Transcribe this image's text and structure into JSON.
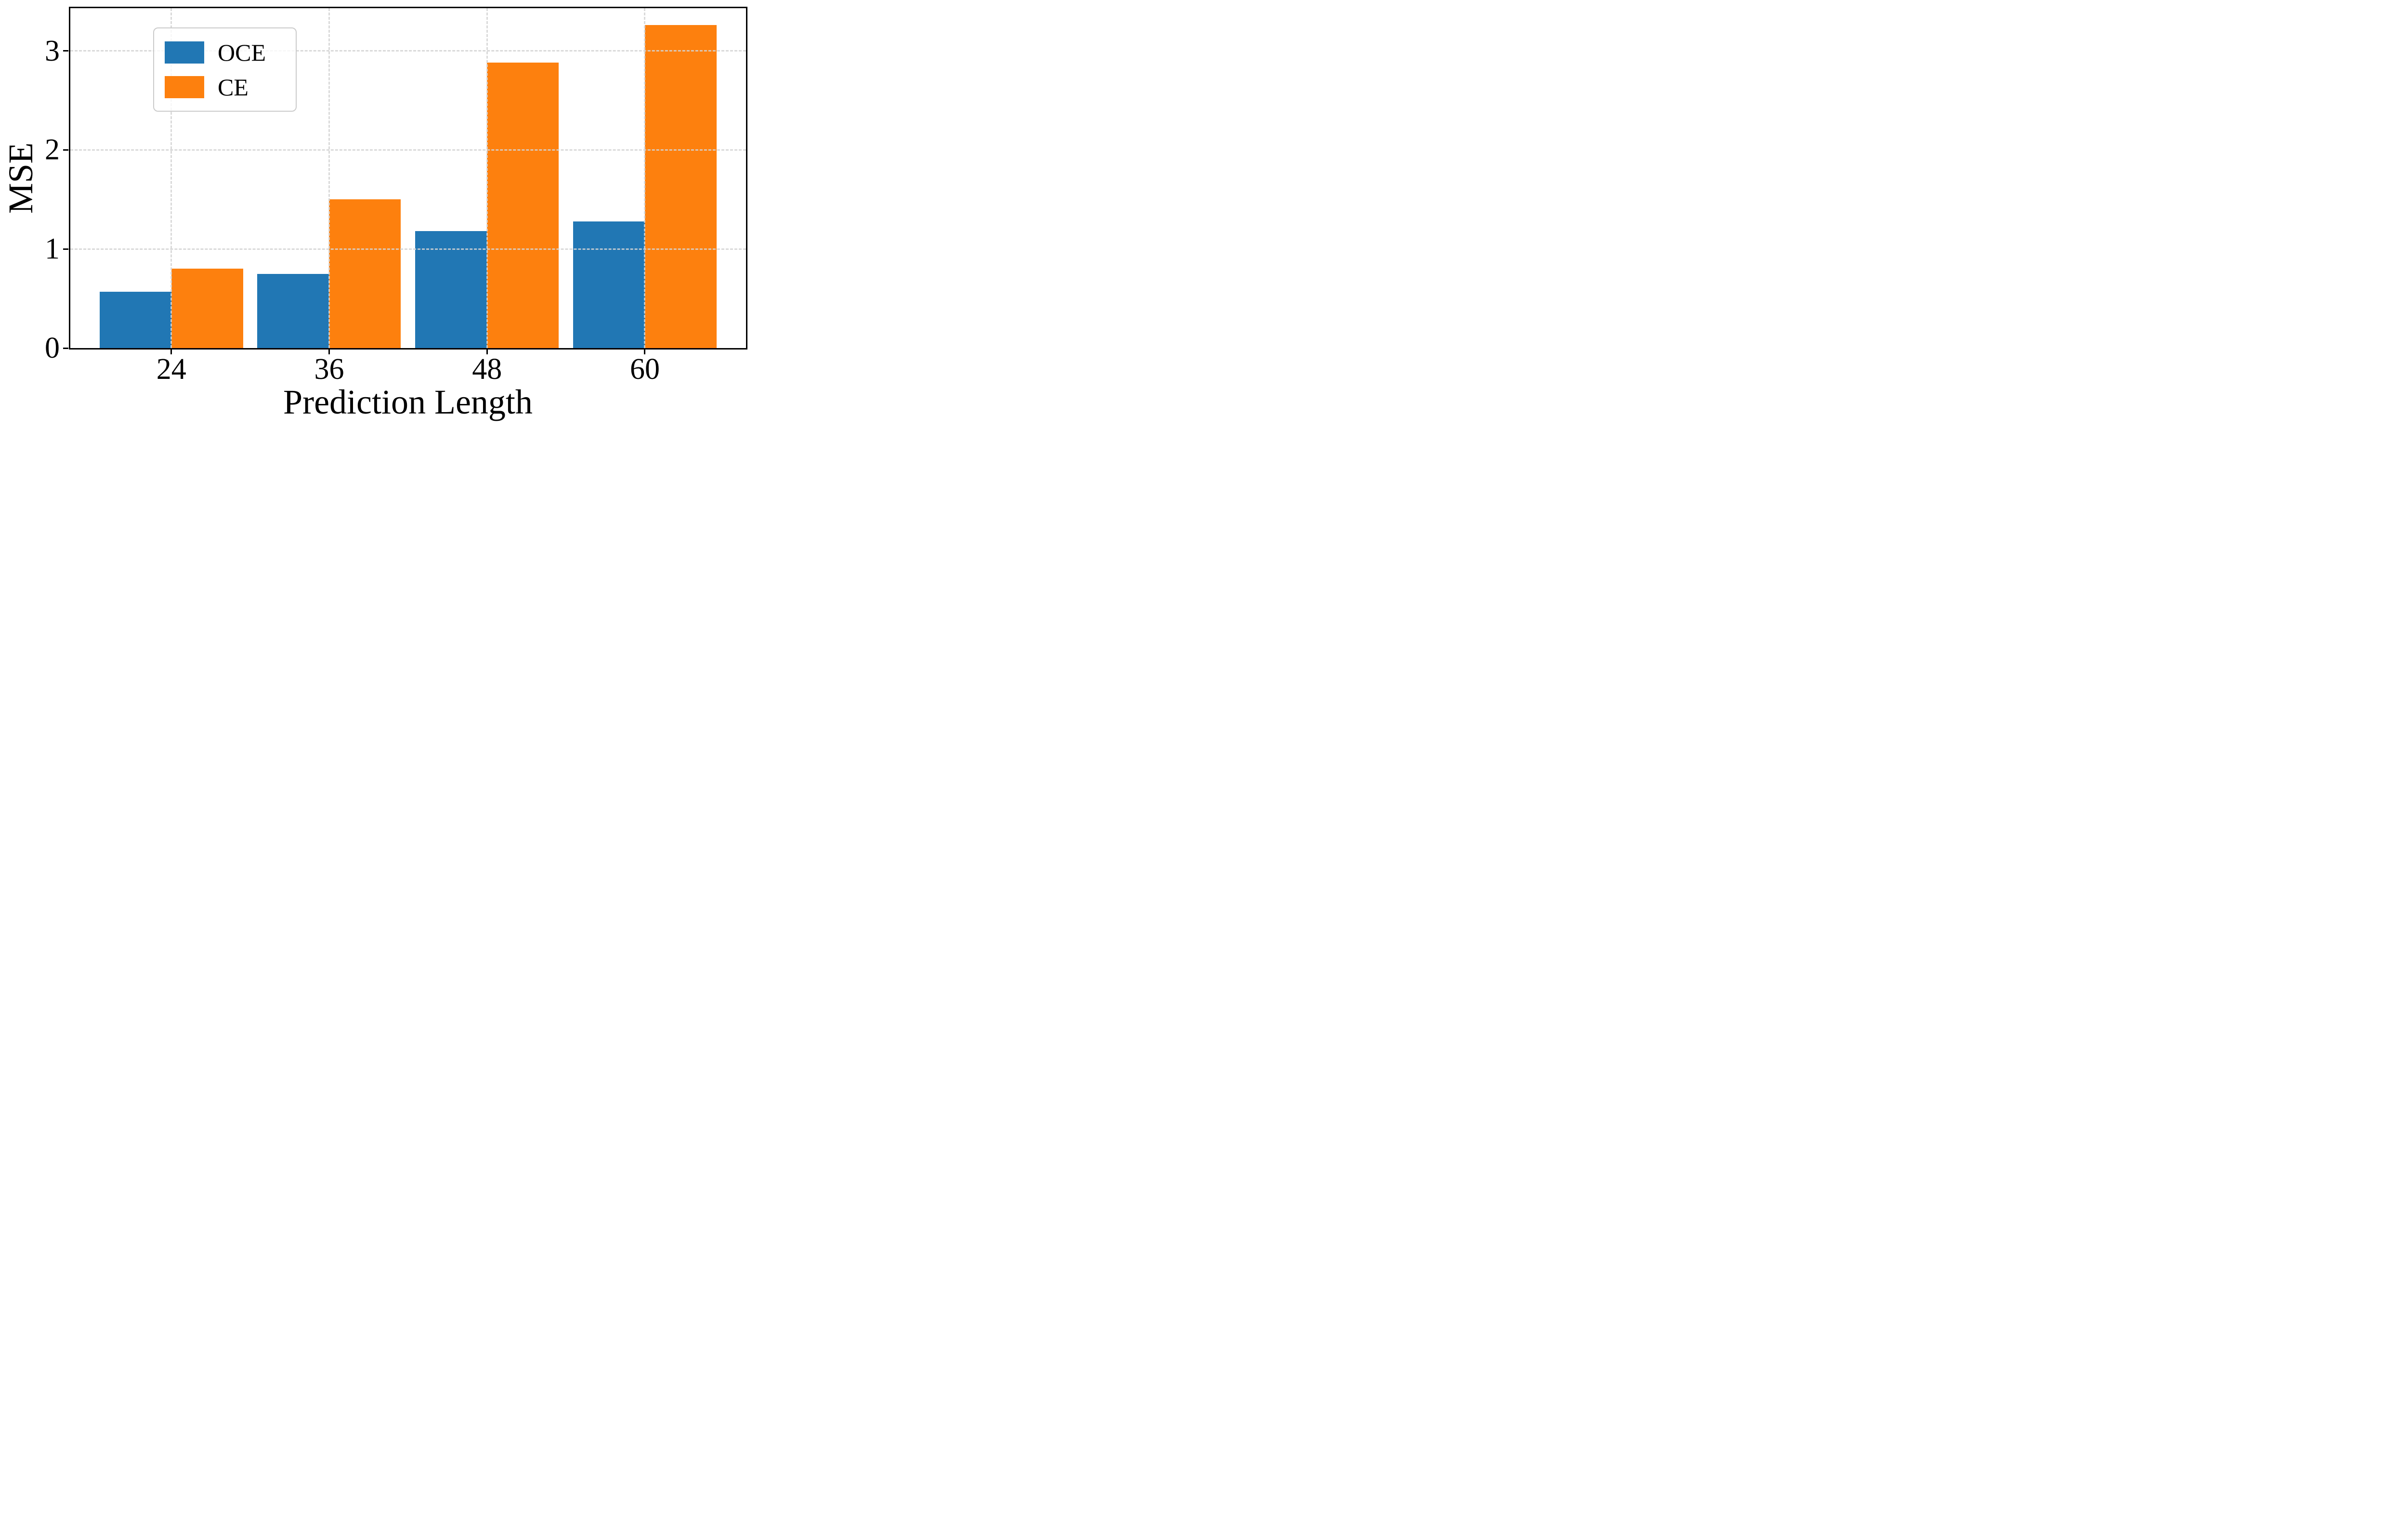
{
  "figure": {
    "background": "#ffffff",
    "xlabel": "Prediction Length",
    "ylabel": "MSE"
  },
  "legend": {
    "items": [
      {
        "label": "OCE",
        "color": "#2177b4"
      },
      {
        "label": "CE",
        "color": "#fd800e"
      }
    ]
  },
  "chart_data": {
    "type": "bar",
    "title": "",
    "xlabel": "Prediction Length",
    "ylabel": "MSE",
    "categories": [
      "24",
      "36",
      "48",
      "60"
    ],
    "series": [
      {
        "name": "OCE",
        "color": "#2177b4",
        "values": [
          0.57,
          0.75,
          1.18,
          1.28
        ]
      },
      {
        "name": "CE",
        "color": "#fd800e",
        "values": [
          0.8,
          1.5,
          2.88,
          3.26
        ]
      }
    ],
    "yticks": [
      "0",
      "1",
      "2",
      "3"
    ],
    "ytick_values": [
      0,
      1,
      2,
      3
    ],
    "ylim": [
      0,
      3.43
    ],
    "grid": true,
    "grid_style": "dashed",
    "grid_color": "#d4d4d4",
    "grid_above_bars": true,
    "legend_position": "upper left",
    "spine_color": "#000000"
  }
}
